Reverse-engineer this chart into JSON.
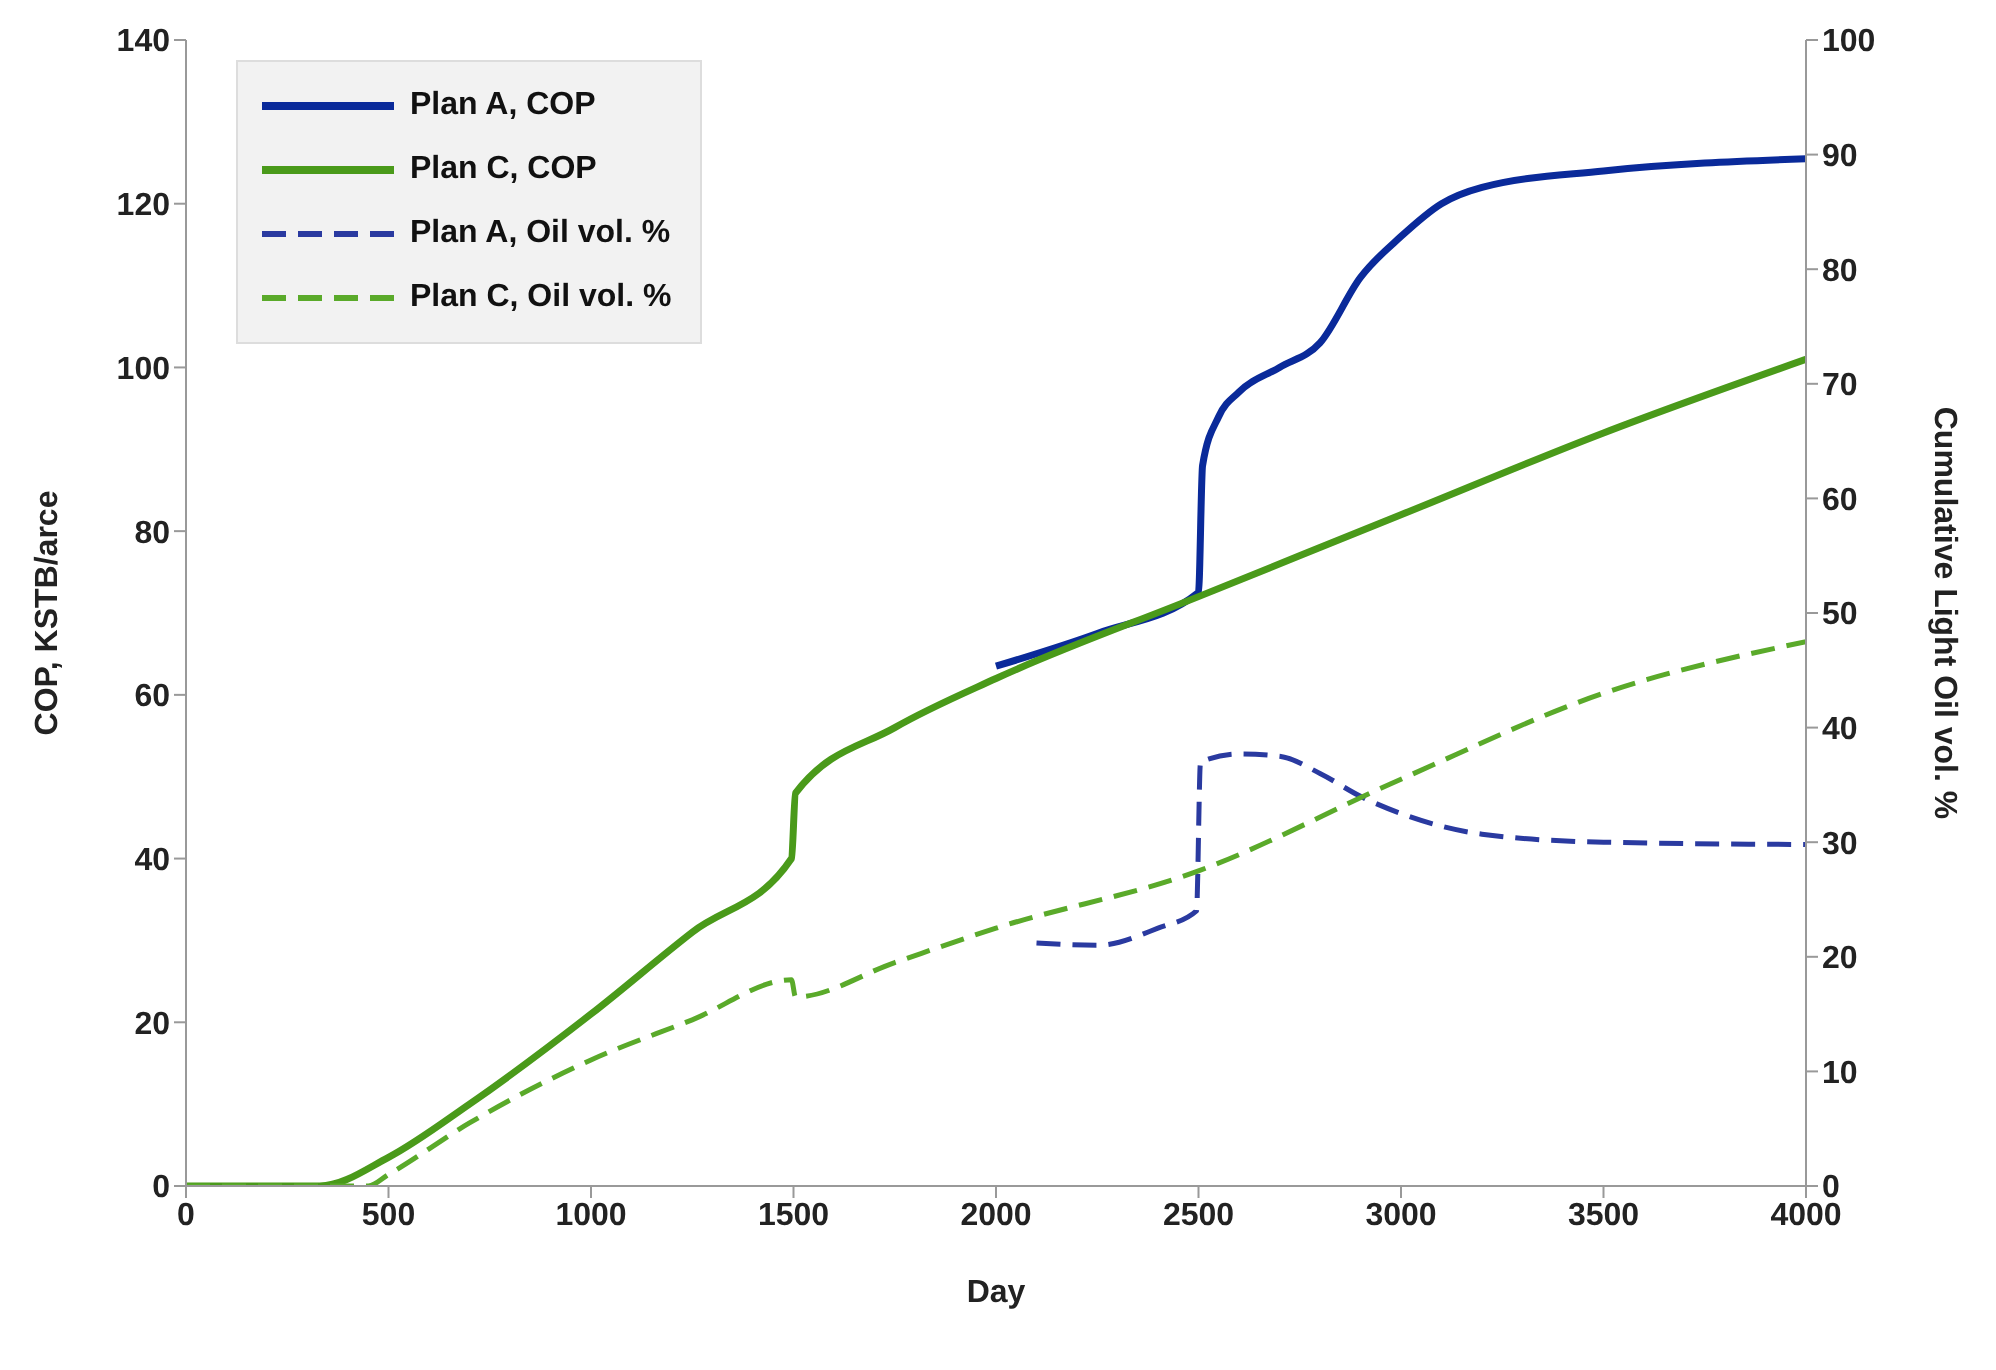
{
  "chart_data": {
    "type": "line",
    "xlabel": "Day",
    "ylabel": "COP, KSTB/arce",
    "y2label": "Cumulative Light Oil vol. %",
    "xlim": [
      0,
      4000
    ],
    "xticks": [
      0,
      500,
      1000,
      1500,
      2000,
      2500,
      3000,
      3500,
      4000
    ],
    "ylim": [
      0,
      140
    ],
    "yticks": [
      0,
      20,
      40,
      60,
      80,
      100,
      120,
      140
    ],
    "y2lim": [
      0,
      100
    ],
    "y2ticks": [
      0,
      10,
      20,
      30,
      40,
      50,
      60,
      70,
      80,
      90,
      100
    ],
    "legend": "top left",
    "grid": false,
    "marker": "none",
    "series": [
      {
        "name": "Plan A, COP",
        "color": "#0a2a9a",
        "line_style": "solid",
        "x": [
          2000,
          2250,
          2500,
          2510,
          2550,
          2600,
          2700,
          2800,
          2900,
          3000,
          3100,
          3200,
          3500,
          4000
        ],
        "values": [
          63.5,
          67.5,
          72.5,
          88,
          94,
          97,
          100,
          103,
          111,
          116,
          120,
          122,
          124,
          125.5
        ]
      },
      {
        "name": "Plan C, COP",
        "color": "#4a9a1a",
        "line_style": "solid",
        "x": [
          0,
          330,
          500,
          700,
          1000,
          1250,
          1495,
          1505,
          1750,
          2000,
          2500,
          3000,
          3500,
          4000
        ],
        "values": [
          0,
          0,
          3.5,
          10,
          21,
          31,
          40,
          48,
          56,
          62,
          72,
          82,
          92,
          101
        ]
      },
      {
        "name": "Plan A, Oil vol. %",
        "color": "#2a3aa0",
        "line_style": "dashed",
        "axis": "y2",
        "x": [
          2100,
          2250,
          2400,
          2495,
          2505,
          2600,
          2700,
          2800,
          2900,
          3000,
          3200,
          3500,
          4000
        ],
        "values": [
          21.2,
          21,
          22.5,
          24,
          37,
          37.7,
          37.5,
          36,
          34,
          32.5,
          30.7,
          30,
          29.8
        ]
      },
      {
        "name": "Plan C, Oil vol. %",
        "color": "#5aaa2a",
        "line_style": "dashed",
        "axis": "y2",
        "x": [
          0,
          450,
          500,
          700,
          1000,
          1250,
          1495,
          1505,
          1750,
          2000,
          2500,
          3000,
          3500,
          4000
        ],
        "values": [
          0,
          0,
          1,
          5.5,
          11,
          14.5,
          18,
          16.5,
          19.5,
          22.5,
          27.5,
          35.5,
          43,
          47.5
        ]
      }
    ]
  }
}
